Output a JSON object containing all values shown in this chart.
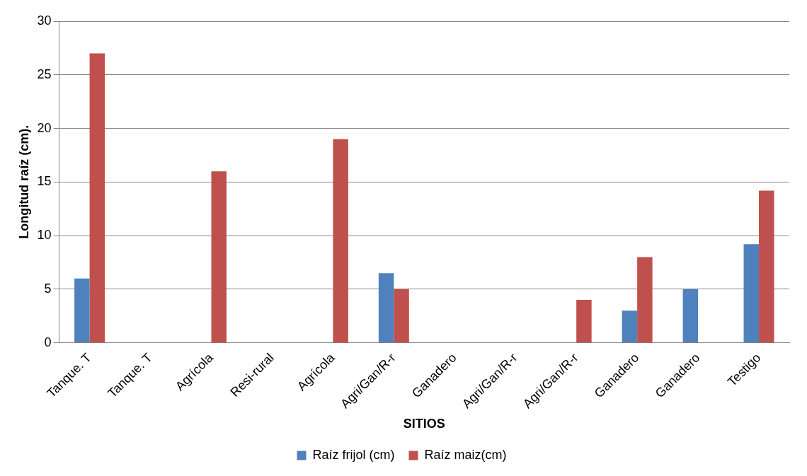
{
  "chart_data": {
    "type": "bar",
    "xlabel": "SITIOS",
    "ylabel": "Longitud raíz (cm).",
    "categories": [
      "Tanque. T",
      "Tanque. T",
      "Agrícola",
      "Resi-rural",
      "Agrícola",
      "Agri/Gan/R-r",
      "Ganadero",
      "Agri/Gan/R-r",
      "Agri/Gan/R-r",
      "Ganadero",
      "Ganadero",
      "Testigo"
    ],
    "series": [
      {
        "name": "Raíz frijol (cm)",
        "color": "#4f81bd",
        "values": [
          6,
          null,
          null,
          null,
          null,
          6.5,
          null,
          null,
          null,
          3,
          5,
          9.2
        ]
      },
      {
        "name": "Raíz maiz(cm)",
        "color": "#c0504d",
        "values": [
          27,
          null,
          16,
          null,
          19,
          5,
          null,
          null,
          4,
          8,
          null,
          14.2
        ]
      }
    ],
    "ylim": [
      0,
      30
    ],
    "yticks": [
      0,
      5,
      10,
      15,
      20,
      25,
      30
    ],
    "grid": "y",
    "legend": "bottom"
  }
}
